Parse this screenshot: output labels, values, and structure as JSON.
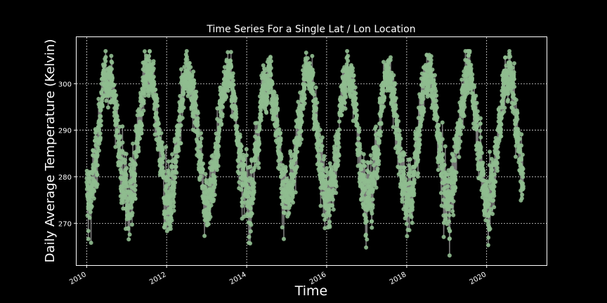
{
  "colors": {
    "background": "#000000",
    "axes": "#ffffff",
    "grid": "#ffffff",
    "line": "#8c8c8c",
    "marker": "#8fbc8f"
  },
  "chart_data": {
    "type": "line",
    "title": "Time Series For a Single Lat / Lon Location",
    "xlabel": "Time",
    "ylabel": "Daily Average Temperature (Kelvin)",
    "xlim": [
      "2009-10-01",
      "2021-07-01"
    ],
    "ylim": [
      261,
      310
    ],
    "grid": true,
    "x_ticks": [
      "2010",
      "2012",
      "2014",
      "2016",
      "2018",
      "2020"
    ],
    "y_ticks": [
      270,
      280,
      290,
      300
    ],
    "series": [
      {
        "x_start": "2010-01-01",
        "x_end": "2020-12-01",
        "x_step": "1 day",
        "annual_cycle": {
          "min": 275,
          "max": 302,
          "peak_month": "July"
        },
        "observed_range": [
          263,
          307
        ],
        "description_of_points": "daily mean temperature values, one marker per day"
      }
    ]
  }
}
